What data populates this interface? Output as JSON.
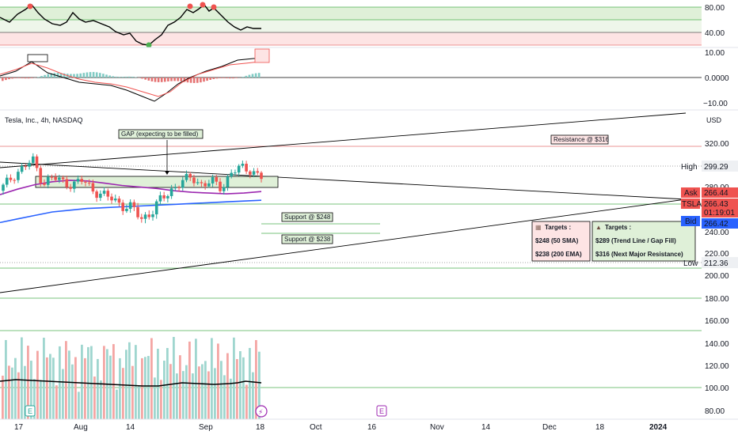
{
  "instrument": {
    "title": "Tesla, Inc., 4h, NASDAQ",
    "currency": "USD"
  },
  "colors": {
    "bull": "#26a69a",
    "bear": "#ef5350",
    "sma50": "#9c27b0",
    "ema200": "#2962ff",
    "resistance_line": "#e57373",
    "support_line": "#4caf50",
    "zone_fill": "#dff0d8",
    "zone_red_fill": "#fde4e4",
    "ask": "#ef5350",
    "bid": "#2962ff"
  },
  "rsi_panel": {
    "ticks": [
      "80.00",
      "40.00"
    ],
    "levels": [
      80,
      60,
      40
    ]
  },
  "macd_panel": {
    "ticks": [
      "10.00",
      "0.0000",
      "−10.00"
    ]
  },
  "price_axis": {
    "ticks": [
      "320.00",
      "280.00",
      "260.00",
      "240.00",
      "220.00",
      "200.00",
      "180.00",
      "160.00",
      "140.00",
      "120.00",
      "100.00",
      "80.00"
    ],
    "high": {
      "label": "High",
      "value": "299.29"
    },
    "low": {
      "label": "Low",
      "value": "212.36"
    },
    "ask": {
      "label": "Ask",
      "value": "266.44"
    },
    "last": {
      "label": "TSLA",
      "value": "266.43",
      "countdown": "01:19:01"
    },
    "bid": {
      "label": "Bid",
      "value": "266.42"
    }
  },
  "time_axis": {
    "ticks": [
      "17",
      "Aug",
      "14",
      "Sep",
      "18",
      "Oct",
      "16",
      "Nov",
      "14",
      "Dec",
      "18",
      "2024"
    ]
  },
  "annotations": {
    "gap": "GAP (expecting to be filled)",
    "resistance": "Resistance @ $316",
    "support_248": "Support @ $248",
    "support_238": "Support @ $238"
  },
  "targets_bear": {
    "icon": "bear-emoji",
    "title": "Targets :",
    "line1": "$248 (50 SMA)",
    "line2": "$238 (200 EMA)"
  },
  "targets_bull": {
    "icon": "bull-emoji",
    "title": "Targets :",
    "line1": "$289 (Trend Line / Gap Fill)",
    "line2": "$316 (Next Major Resistance)"
  },
  "event_markers": {
    "earnings": "E",
    "dividend": "⚡"
  },
  "chart_data": {
    "type": "candlestick",
    "interval": "4h",
    "y_scale": "log",
    "ylim": [
      76,
      365
    ],
    "levels": {
      "resistance": 316,
      "support_1": 248,
      "support_2": 238,
      "gap_top": 299,
      "gap_bottom": 290,
      "high": 299.29,
      "low": 212.36
    },
    "sma50": [
      245,
      252,
      258,
      262,
      264,
      263,
      260,
      257,
      255,
      253,
      250,
      248,
      247,
      246,
      247,
      249
    ],
    "ema200": [
      212,
      216,
      220,
      224,
      226,
      228,
      229,
      230,
      231,
      232,
      233,
      234,
      235,
      236,
      237,
      238
    ],
    "closes": [
      255,
      270,
      282,
      293,
      260,
      268,
      262,
      258,
      264,
      252,
      244,
      240,
      232,
      228,
      216,
      225,
      240,
      252,
      262,
      268,
      258,
      262,
      254,
      275,
      282,
      278,
      268
    ]
  }
}
